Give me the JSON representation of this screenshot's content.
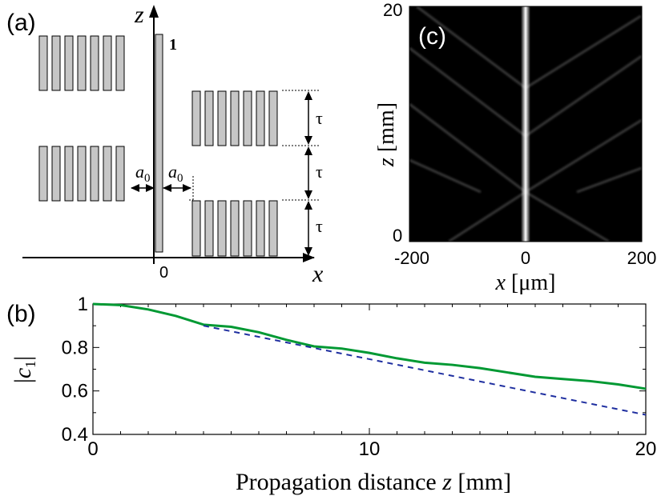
{
  "panel_labels": {
    "a": "(a)",
    "b": "(b)",
    "c": "(c)"
  },
  "schematic": {
    "axis_z": "z",
    "axis_x": "x",
    "origin": "0",
    "waveguide_label": "1",
    "spacing_label_sym": "a",
    "spacing_label_sub": "0",
    "tau": "τ",
    "colors": {
      "waveguide_fill": "#c6c6c6",
      "outline": "#000000"
    }
  },
  "intensity_map": {
    "xlabel_var": "x",
    "xlabel_unit": " [μm]",
    "ylabel_var": "z",
    "ylabel_unit": " [mm]",
    "x_ticks": [
      "-200",
      "0",
      "200"
    ],
    "y_ticks": [
      "0",
      "20"
    ],
    "xlim": [
      -200,
      200
    ],
    "ylim": [
      0,
      20
    ],
    "colormap": "gray"
  },
  "chart_data": {
    "type": "line",
    "xlabel_text": "Propagation distance ",
    "xlabel_var": "z",
    "xlabel_unit": " [mm]",
    "ylabel_bar_left": "|",
    "ylabel_var": "c",
    "ylabel_sub": "1",
    "ylabel_bar_right": "|",
    "xlim": [
      0,
      20
    ],
    "ylim": [
      0.4,
      1.0
    ],
    "x_ticks": [
      "0",
      "10",
      "20"
    ],
    "y_ticks": [
      "0.4",
      "0.6",
      "0.8",
      "1"
    ],
    "series": [
      {
        "color": "#009933",
        "style": "solid",
        "x": [
          0,
          1,
          2,
          3,
          4,
          5,
          6,
          7,
          8,
          9,
          10,
          11,
          12,
          13,
          14,
          15,
          16,
          17,
          18,
          19,
          20
        ],
        "y": [
          1.0,
          0.995,
          0.975,
          0.945,
          0.905,
          0.895,
          0.87,
          0.835,
          0.805,
          0.795,
          0.775,
          0.75,
          0.73,
          0.72,
          0.705,
          0.685,
          0.665,
          0.655,
          0.645,
          0.63,
          0.61
        ]
      },
      {
        "color": "#1f2fa0",
        "style": "dashed",
        "x": [
          4,
          20
        ],
        "y": [
          0.9,
          0.49
        ]
      }
    ]
  }
}
